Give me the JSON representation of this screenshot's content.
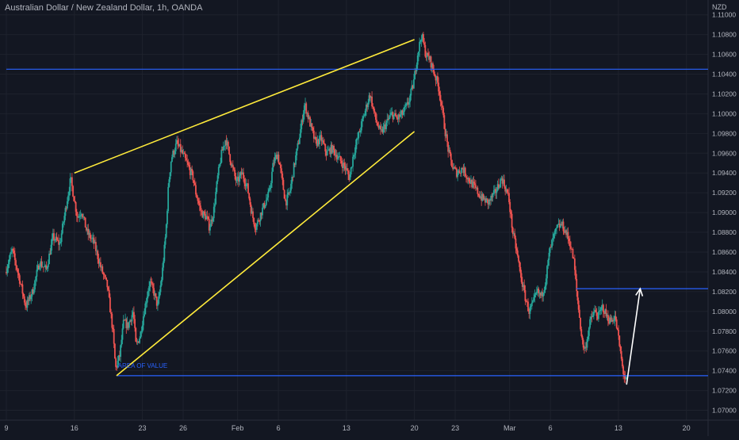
{
  "chart_data": {
    "type": "candlestick",
    "title": "Australian Dollar / New Zealand Dollar, 1h, OANDA",
    "currency_label": "NZD",
    "ylim": [
      1.069,
      1.1115
    ],
    "y_ticks": [
      "1.11000",
      "1.10800",
      "1.10600",
      "1.10400",
      "1.10200",
      "1.10000",
      "1.09800",
      "1.09600",
      "1.09400",
      "1.09200",
      "1.09000",
      "1.08800",
      "1.08600",
      "1.08400",
      "1.08200",
      "1.08000",
      "1.07800",
      "1.07600",
      "1.07400",
      "1.07200",
      "1.07000"
    ],
    "x_tick_labels": [
      {
        "label": "9",
        "index": 0
      },
      {
        "label": "16",
        "index": 5
      },
      {
        "label": "23",
        "index": 10
      },
      {
        "label": "26",
        "index": 13
      },
      {
        "label": "Feb",
        "index": 17
      },
      {
        "label": "6",
        "index": 20
      },
      {
        "label": "13",
        "index": 25
      },
      {
        "label": "20",
        "index": 30
      },
      {
        "label": "23",
        "index": 33
      },
      {
        "label": "Mar",
        "index": 37
      },
      {
        "label": "6",
        "index": 40
      },
      {
        "label": "13",
        "index": 45
      },
      {
        "label": "20",
        "index": 50
      }
    ],
    "x_index_range": [
      0,
      52
    ],
    "price_path": [
      [
        0,
        1.084
      ],
      [
        0.5,
        1.0862
      ],
      [
        1,
        1.0835
      ],
      [
        1.5,
        1.0805
      ],
      [
        2,
        1.082
      ],
      [
        2.5,
        1.085
      ],
      [
        3,
        1.0842
      ],
      [
        3.5,
        1.0875
      ],
      [
        4,
        1.0868
      ],
      [
        4.5,
        1.091
      ],
      [
        4.8,
        1.0934
      ],
      [
        5,
        1.0918
      ],
      [
        5.3,
        1.0895
      ],
      [
        5.6,
        1.0902
      ],
      [
        6,
        1.088
      ],
      [
        6.5,
        1.087
      ],
      [
        7,
        1.0845
      ],
      [
        7.5,
        1.0825
      ],
      [
        7.9,
        1.078
      ],
      [
        8.1,
        1.0742
      ],
      [
        8.4,
        1.0755
      ],
      [
        8.7,
        1.079
      ],
      [
        9,
        1.0785
      ],
      [
        9.4,
        1.08
      ],
      [
        9.6,
        1.0765
      ],
      [
        9.9,
        1.0775
      ],
      [
        10.2,
        1.08
      ],
      [
        10.6,
        1.083
      ],
      [
        10.9,
        1.082
      ],
      [
        11.2,
        1.0805
      ],
      [
        11.5,
        1.0835
      ],
      [
        11.8,
        1.088
      ],
      [
        12,
        1.093
      ],
      [
        12.2,
        1.0955
      ],
      [
        12.6,
        1.097
      ],
      [
        13,
        1.096
      ],
      [
        13.4,
        1.0948
      ],
      [
        13.8,
        1.0935
      ],
      [
        14,
        1.092
      ],
      [
        14.4,
        1.09
      ],
      [
        14.8,
        1.0895
      ],
      [
        15,
        1.0885
      ],
      [
        15.3,
        1.09
      ],
      [
        15.6,
        1.0935
      ],
      [
        15.9,
        1.096
      ],
      [
        16.2,
        1.0975
      ],
      [
        16.6,
        1.095
      ],
      [
        17,
        1.093
      ],
      [
        17.4,
        1.094
      ],
      [
        17.8,
        1.0925
      ],
      [
        18.1,
        1.09
      ],
      [
        18.4,
        1.0885
      ],
      [
        18.8,
        1.09
      ],
      [
        19.1,
        1.091
      ],
      [
        19.4,
        1.092
      ],
      [
        19.7,
        1.095
      ],
      [
        20,
        1.096
      ],
      [
        20.2,
        1.0945
      ],
      [
        20.6,
        1.091
      ],
      [
        20.9,
        1.092
      ],
      [
        21.2,
        1.0945
      ],
      [
        21.6,
        1.0975
      ],
      [
        22,
        1.101
      ],
      [
        22.4,
        1.099
      ],
      [
        22.8,
        1.097
      ],
      [
        23.2,
        1.0975
      ],
      [
        23.6,
        1.096
      ],
      [
        24,
        1.0965
      ],
      [
        24.5,
        1.0955
      ],
      [
        25,
        1.0945
      ],
      [
        25.3,
        1.0935
      ],
      [
        25.6,
        1.096
      ],
      [
        26,
        1.098
      ],
      [
        26.4,
        1.1
      ],
      [
        26.8,
        1.102
      ],
      [
        27.2,
        1.0995
      ],
      [
        27.6,
        1.098
      ],
      [
        28,
        1.099
      ],
      [
        28.4,
        1.1
      ],
      [
        28.8,
        1.0995
      ],
      [
        29.2,
        1.1
      ],
      [
        29.6,
        1.101
      ],
      [
        30,
        1.103
      ],
      [
        30.3,
        1.106
      ],
      [
        30.6,
        1.108
      ],
      [
        30.9,
        1.106
      ],
      [
        31.2,
        1.1055
      ],
      [
        31.5,
        1.1042
      ],
      [
        31.8,
        1.103
      ],
      [
        32,
        1.1015
      ],
      [
        32.3,
        1.0985
      ],
      [
        32.6,
        1.096
      ],
      [
        32.9,
        1.0945
      ],
      [
        33.2,
        1.094
      ],
      [
        33.6,
        1.0945
      ],
      [
        34,
        1.0935
      ],
      [
        34.5,
        1.0925
      ],
      [
        35,
        1.0915
      ],
      [
        35.5,
        1.091
      ],
      [
        36,
        1.092
      ],
      [
        36.5,
        1.0935
      ],
      [
        37,
        1.0915
      ],
      [
        37.3,
        1.088
      ],
      [
        37.6,
        1.086
      ],
      [
        37.9,
        1.0835
      ],
      [
        38.2,
        1.0815
      ],
      [
        38.5,
        1.08
      ],
      [
        38.8,
        1.0808
      ],
      [
        39.1,
        1.082
      ],
      [
        39.4,
        1.0815
      ],
      [
        39.7,
        1.083
      ],
      [
        40,
        1.086
      ],
      [
        40.3,
        1.0875
      ],
      [
        40.6,
        1.0885
      ],
      [
        40.9,
        1.0888
      ],
      [
        41.2,
        1.088
      ],
      [
        41.5,
        1.087
      ],
      [
        41.8,
        1.085
      ],
      [
        42,
        1.082
      ],
      [
        42.2,
        1.0795
      ],
      [
        42.4,
        1.077
      ],
      [
        42.6,
        1.076
      ],
      [
        42.8,
        1.0775
      ],
      [
        43,
        1.079
      ],
      [
        43.3,
        1.08
      ],
      [
        43.6,
        1.0795
      ],
      [
        43.9,
        1.0805
      ],
      [
        44.2,
        1.0795
      ],
      [
        44.5,
        1.079
      ],
      [
        44.8,
        1.0795
      ],
      [
        45,
        1.078
      ],
      [
        45.2,
        1.076
      ],
      [
        45.4,
        1.074
      ],
      [
        45.6,
        1.073
      ]
    ],
    "horizontal_lines": [
      {
        "name": "resistance",
        "price": 1.1045,
        "x_from_index": 0,
        "color": "#2962ff"
      },
      {
        "name": "support-area-of-value",
        "price": 1.0735,
        "x_from_index": 8.1,
        "color": "#2962ff"
      },
      {
        "name": "target",
        "price": 1.0823,
        "x_from_index": 41.9,
        "color": "#2962ff"
      }
    ],
    "wedge_lines": [
      {
        "name": "upper-trendline",
        "from": [
          5,
          1.094
        ],
        "to": [
          30,
          1.1075
        ],
        "color": "#ffeb3b"
      },
      {
        "name": "lower-trendline",
        "from": [
          8.1,
          1.0735
        ],
        "to": [
          30,
          1.0982
        ],
        "color": "#ffeb3b"
      }
    ],
    "arrow": {
      "from": [
        45.6,
        1.0726
      ],
      "to": [
        46.6,
        1.0823
      ],
      "color": "#ffffff"
    },
    "annotations": [
      {
        "text": "AREA OF VALUE",
        "x_index": 8.2,
        "price": 1.0743,
        "color": "#2962ff"
      }
    ],
    "colors": {
      "background": "#131722",
      "up": "#26a69a",
      "down": "#ef5350",
      "text": "#b2b5be"
    }
  }
}
